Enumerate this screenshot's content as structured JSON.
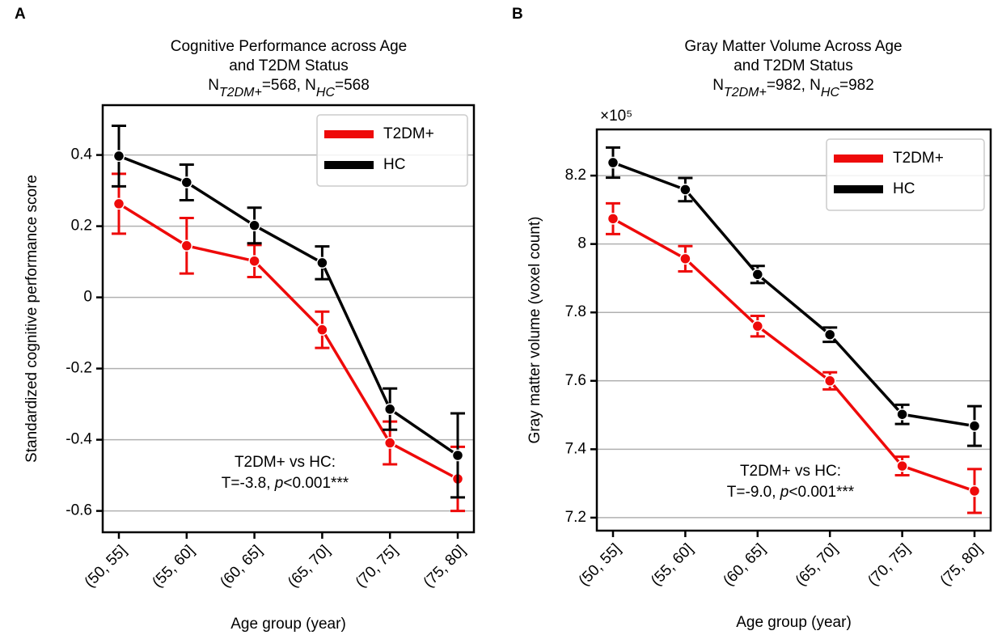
{
  "chart_data": [
    {
      "type": "line",
      "panel_label": "A",
      "title": [
        "Cognitive Performance across Age",
        "and T2DM Status"
      ],
      "subtitle_parts": [
        "N",
        "T2DM+",
        "=568, N",
        "HC",
        "=568"
      ],
      "xlabel": "Age group (year)",
      "ylabel": "Standardized cognitive performance score",
      "categories": [
        "(50, 55]",
        "(55, 60]",
        "(60, 65]",
        "(65, 70]",
        "(70, 75]",
        "(75, 80]"
      ],
      "series": [
        {
          "name": "T2DM+",
          "color": "#ee0a0a",
          "values": [
            0.263,
            0.145,
            0.102,
            -0.091,
            -0.409,
            -0.51
          ],
          "errors": [
            0.084,
            0.078,
            0.045,
            0.051,
            0.06,
            0.09
          ]
        },
        {
          "name": "HC",
          "color": "#000000",
          "values": [
            0.397,
            0.323,
            0.202,
            0.097,
            -0.314,
            -0.444
          ],
          "errors": [
            0.085,
            0.05,
            0.05,
            0.046,
            0.058,
            0.118
          ]
        }
      ],
      "ylim": [
        -0.66,
        0.54
      ],
      "yticks": [
        -0.6,
        -0.4,
        -0.2,
        0.0,
        0.2,
        0.4
      ],
      "grid": true,
      "legend": "upper right",
      "annotation": [
        "T2DM+ vs HC:",
        [
          "T=-3.8, ",
          "p",
          "<0.001***"
        ]
      ]
    },
    {
      "type": "line",
      "panel_label": "B",
      "title": [
        "Gray Matter Volume Across Age",
        "and T2DM Status"
      ],
      "subtitle_parts": [
        "N",
        "T2DM+",
        "=982, N",
        "HC",
        "=982"
      ],
      "xlabel": "Age group (year)",
      "ylabel": "Gray matter volume (voxel count)",
      "y_offset_label": "×10⁵",
      "categories": [
        "(50, 55]",
        "(55, 60]",
        "(60, 65]",
        "(65, 70]",
        "(70, 75]",
        "(75, 80]"
      ],
      "series": [
        {
          "name": "T2DM+",
          "color": "#ee0a0a",
          "values": [
            8.074,
            7.957,
            7.76,
            7.6,
            7.351,
            7.278
          ],
          "errors": [
            0.045,
            0.037,
            0.03,
            0.025,
            0.027,
            0.064
          ]
        },
        {
          "name": "HC",
          "color": "#000000",
          "values": [
            8.238,
            8.159,
            7.911,
            7.735,
            7.502,
            7.468
          ],
          "errors": [
            0.044,
            0.034,
            0.025,
            0.021,
            0.028,
            0.058
          ]
        }
      ],
      "ylim": [
        7.162,
        8.335
      ],
      "yticks": [
        7.2,
        7.4,
        7.6,
        7.8,
        8.0,
        8.2
      ],
      "grid": true,
      "legend": "upper right",
      "annotation": [
        "T2DM+ vs HC:",
        [
          "T=-9.0, ",
          "p",
          "<0.001***"
        ]
      ]
    }
  ]
}
